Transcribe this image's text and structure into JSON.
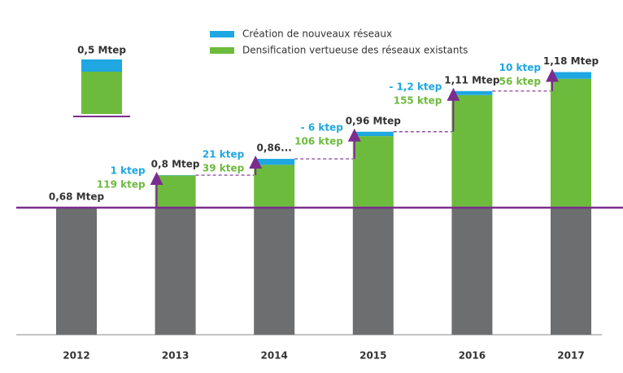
{
  "chart_data": {
    "type": "bar",
    "categories": [
      "2012",
      "2013",
      "2014",
      "2015",
      "2016",
      "2017"
    ],
    "totals": [
      0.68,
      0.8,
      0.86,
      0.96,
      1.11,
      1.18
    ],
    "total_labels": [
      "0,68 Mtep",
      "0,8 Mtep",
      "0,86...",
      "0,96 Mtep",
      "1,11 Mtep",
      "1,18 Mtep"
    ],
    "baseline": 0.68,
    "baseline_color": "#6d6e70",
    "line_color": "#7b2d8e",
    "legend_sample_label": "0,5 Mtep",
    "series": [
      {
        "name": "Création de nouveaux réseaux",
        "color": "#1ea7e1",
        "values": [
          null,
          0.001,
          0.021,
          -0.006,
          -0.0012,
          0.01
        ],
        "value_labels": [
          null,
          "1 ktep",
          "21 ktep",
          "- 6 ktep",
          "- 1,2 ktep",
          "10 ktep"
        ]
      },
      {
        "name": "Densification vertueuse des réseaux existants",
        "color": "#6dbb3c",
        "values": [
          null,
          0.119,
          0.039,
          0.106,
          0.155,
          0.056
        ],
        "value_labels": [
          null,
          "119 ktep",
          "39 ktep",
          "106 ktep",
          "155 ktep",
          "56 ktep"
        ]
      }
    ]
  }
}
